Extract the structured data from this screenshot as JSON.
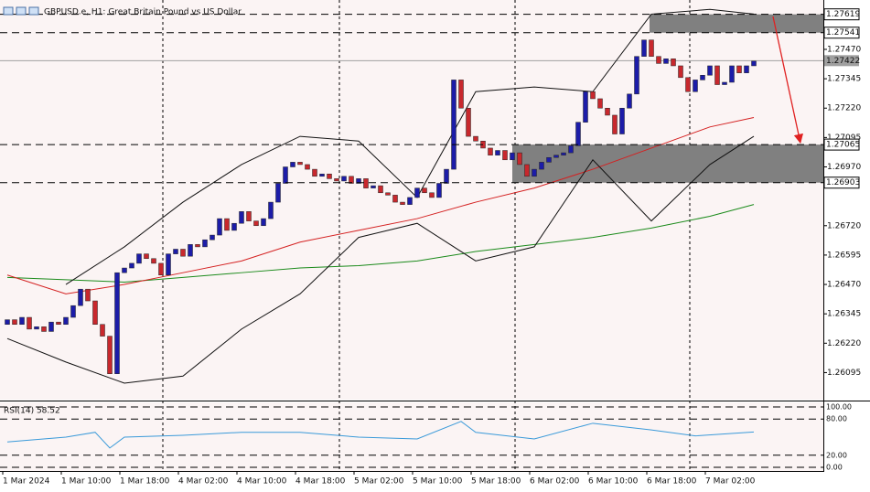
{
  "chart_data": {
    "type": "candlestick",
    "title": "GBPUSD.e, H1:  Great Britain Pound vs US Dollar",
    "categories": [
      "1 Mar 2024",
      null,
      null,
      null,
      null,
      null,
      null,
      null,
      "1 Mar 10:00",
      null,
      null,
      null,
      null,
      null,
      null,
      null,
      "1 Mar 18:00",
      null,
      null,
      null,
      null,
      null,
      null,
      null,
      "4 Mar 02:00",
      null,
      null,
      null,
      null,
      null,
      null,
      null,
      "4 Mar 10:00",
      null,
      null,
      null,
      null,
      null,
      null,
      null,
      "4 Mar 18:00",
      null,
      null,
      null,
      null,
      null,
      null,
      null,
      "5 Mar 02:00",
      null,
      null,
      null,
      null,
      null,
      null,
      null,
      "5 Mar 10:00",
      null,
      null,
      null,
      null,
      null,
      null,
      null,
      "5 Mar 18:00",
      null,
      null,
      null,
      null,
      null,
      null,
      null,
      "6 Mar 02:00",
      null,
      null,
      null,
      null,
      null,
      null,
      null,
      "6 Mar 10:00",
      null,
      null,
      null,
      null,
      null,
      null,
      null,
      "6 Mar 18:00",
      null,
      null,
      null,
      null,
      null,
      null,
      null,
      "7 Mar 02:00",
      null,
      null,
      null,
      null,
      null,
      null
    ],
    "open": [
      1.263,
      1.2632,
      1.263,
      1.2633,
      1.2628,
      1.2629,
      1.2627,
      1.2631,
      1.263,
      1.2633,
      1.2638,
      1.2645,
      1.264,
      1.263,
      1.2625,
      1.2609,
      1.2652,
      1.2654,
      1.2656,
      1.266,
      1.2658,
      1.2656,
      1.2651,
      1.266,
      1.2662,
      1.2659,
      1.2664,
      1.2663,
      1.2666,
      1.2668,
      1.2675,
      1.267,
      1.2673,
      1.2678,
      1.2674,
      1.2672,
      1.2675,
      1.2682,
      1.269,
      1.2697,
      1.2699,
      1.2698,
      1.2696,
      1.2693,
      1.2694,
      1.2692,
      1.2691,
      1.2693,
      1.269,
      1.2692,
      1.2688,
      1.2689,
      1.2686,
      1.2685,
      1.2682,
      1.2681,
      1.2684,
      1.2688,
      1.2686,
      1.2684,
      1.269,
      1.2696,
      1.2734,
      1.2722,
      1.271,
      1.2708,
      1.2705,
      1.2702,
      1.2704,
      1.27,
      1.2703,
      1.2698,
      1.2693,
      1.2696,
      1.2699,
      1.2701,
      1.2702,
      1.2703,
      1.2706,
      1.2716,
      1.2729,
      1.2726,
      1.2722,
      1.2719,
      1.2711,
      1.2722,
      1.2728,
      1.2744,
      1.2751,
      1.2744,
      1.2741,
      1.2743,
      1.274,
      1.2735,
      1.2729,
      1.2734,
      1.2736,
      1.274,
      1.2732,
      1.2733,
      1.274,
      1.2737,
      1.274
    ],
    "close": [
      1.2632,
      1.263,
      1.2633,
      1.2628,
      1.2629,
      1.2627,
      1.2631,
      1.263,
      1.2633,
      1.2638,
      1.2645,
      1.264,
      1.263,
      1.2625,
      1.2609,
      1.2652,
      1.2654,
      1.2656,
      1.266,
      1.2658,
      1.2656,
      1.2651,
      1.266,
      1.2662,
      1.2659,
      1.2664,
      1.2663,
      1.2666,
      1.2668,
      1.2675,
      1.267,
      1.2673,
      1.2678,
      1.2674,
      1.2672,
      1.2675,
      1.2682,
      1.269,
      1.2697,
      1.2699,
      1.2698,
      1.2696,
      1.2693,
      1.2694,
      1.2692,
      1.2691,
      1.2693,
      1.269,
      1.2692,
      1.2688,
      1.2689,
      1.2686,
      1.2685,
      1.2682,
      1.2681,
      1.2684,
      1.2688,
      1.2686,
      1.2684,
      1.269,
      1.2696,
      1.2734,
      1.2722,
      1.271,
      1.2708,
      1.2705,
      1.2702,
      1.2704,
      1.27,
      1.2703,
      1.2698,
      1.2693,
      1.2696,
      1.2699,
      1.2701,
      1.2702,
      1.2703,
      1.2706,
      1.2716,
      1.2729,
      1.2726,
      1.2722,
      1.2719,
      1.2711,
      1.2722,
      1.2728,
      1.2744,
      1.2751,
      1.2744,
      1.2741,
      1.2743,
      1.274,
      1.2735,
      1.2729,
      1.2734,
      1.2736,
      1.274,
      1.2732,
      1.2733,
      1.274,
      1.2737,
      1.274,
      1.2742
    ],
    "up_color": "#1c1ca8",
    "down_color": "#c8282d",
    "overlays": [
      {
        "color": "#1a8a1a",
        "x": [
          0,
          8,
          16,
          24,
          32,
          40,
          48,
          56,
          64,
          72,
          80,
          88,
          96,
          102
        ],
        "values": [
          1.265,
          1.2649,
          1.2648,
          1.265,
          1.2652,
          1.2654,
          1.2655,
          1.2657,
          1.2661,
          1.2664,
          1.2667,
          1.2671,
          1.2676,
          1.2681
        ]
      },
      {
        "color": "#d42020",
        "x": [
          0,
          8,
          16,
          24,
          32,
          40,
          48,
          56,
          64,
          72,
          80,
          88,
          96,
          102
        ],
        "values": [
          1.2651,
          1.2643,
          1.2647,
          1.2652,
          1.2657,
          1.2665,
          1.267,
          1.2675,
          1.2682,
          1.2688,
          1.2696,
          1.2705,
          1.2714,
          1.2718
        ]
      },
      {
        "color": "#111111",
        "x": [
          8,
          16,
          24,
          32,
          40,
          48,
          56,
          64,
          72,
          80,
          88,
          96,
          102
        ],
        "values": [
          1.2647,
          1.2663,
          1.2682,
          1.2698,
          1.271,
          1.2708,
          1.2684,
          1.2729,
          1.2731,
          1.2729,
          1.2762,
          1.2764,
          1.2762
        ]
      },
      {
        "color": "#111111",
        "x": [
          0,
          8,
          16,
          24,
          32,
          40,
          48,
          56,
          64,
          72,
          80,
          88,
          96,
          102
        ],
        "values": [
          1.2624,
          1.2614,
          1.2605,
          1.2608,
          1.2628,
          1.2643,
          1.2667,
          1.2673,
          1.2657,
          1.2663,
          1.27,
          1.2674,
          1.2698,
          1.271
        ]
      }
    ],
    "ylim": [
      1.2598,
      1.2768
    ],
    "yticks": [
      {
        "value": 1.2747,
        "label": "1.27470"
      },
      1.27345,
      {
        "value": 1.2722,
        "label": "1.27220"
      },
      1.27095,
      {
        "value": 1.2697,
        "label": "1.26970"
      },
      {
        "value": 1.2672,
        "label": "1.26720"
      },
      1.26595,
      {
        "value": 1.2647,
        "label": "1.26470"
      },
      1.26345,
      {
        "value": 1.2622,
        "label": "1.26220"
      },
      1.26095
    ],
    "levels": [
      1.27619,
      1.27541,
      1.27065,
      1.26903
    ],
    "zones": [
      [
        1.27619,
        1.27541
      ],
      [
        1.27065,
        1.26903
      ]
    ],
    "current_price": 1.27422,
    "rsi": {
      "label": "RSI(14) 58.52",
      "color": "#3a9ad9",
      "x": [
        0,
        8,
        12,
        14,
        16,
        24,
        32,
        40,
        48,
        56,
        62,
        64,
        72,
        80,
        88,
        94,
        102
      ],
      "values": [
        42,
        50,
        58,
        32,
        50,
        53,
        58,
        58,
        50,
        47,
        76,
        58,
        47,
        73,
        62,
        52,
        58.52
      ],
      "ylim": [
        0,
        100
      ],
      "yticks": [
        {
          "value": 100,
          "label": "100.00"
        },
        {
          "value": 80,
          "label": "80.00"
        },
        {
          "value": 20,
          "label": "20.00"
        },
        {
          "value": 0,
          "label": "0.00"
        }
      ]
    }
  }
}
